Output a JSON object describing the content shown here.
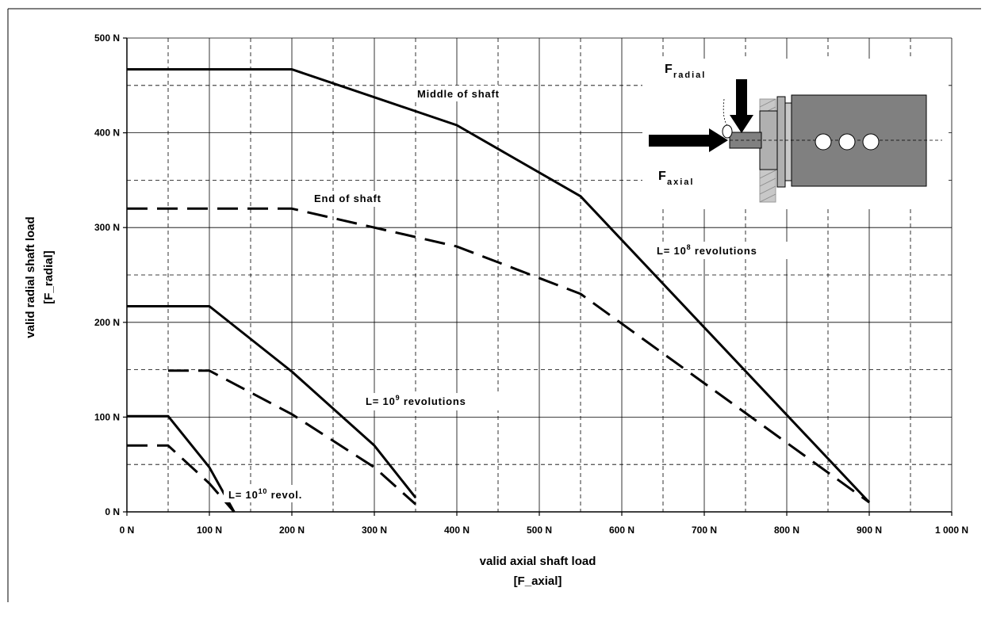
{
  "chart_data": {
    "type": "line",
    "xlabel_line1": "valid axial shaft load",
    "xlabel_line2": "[F_axial]",
    "ylabel_line1": "valid radial shaft load",
    "ylabel_line2": "[F_radial]",
    "xlim": [
      0,
      1000
    ],
    "ylim": [
      0,
      500
    ],
    "x_ticks": [
      "0 N",
      "100 N",
      "200 N",
      "300 N",
      "400 N",
      "500 N",
      "600 N",
      "700 N",
      "800 N",
      "900 N",
      "1 000 N"
    ],
    "y_ticks": [
      "0 N",
      "100 N",
      "200 N",
      "300 N",
      "400 N",
      "500 N"
    ],
    "grid": true,
    "series": [
      {
        "group": "L=10^8",
        "style": "solid",
        "points": [
          [
            0,
            467
          ],
          [
            200,
            467
          ],
          [
            400,
            408
          ],
          [
            550,
            333
          ],
          [
            900,
            10
          ]
        ]
      },
      {
        "group": "L=10^8",
        "style": "dashed",
        "points": [
          [
            0,
            320
          ],
          [
            200,
            320
          ],
          [
            400,
            280
          ],
          [
            550,
            230
          ],
          [
            900,
            10
          ]
        ]
      },
      {
        "group": "L=10^9",
        "style": "solid",
        "points": [
          [
            0,
            217
          ],
          [
            100,
            217
          ],
          [
            200,
            148
          ],
          [
            300,
            70
          ],
          [
            350,
            15
          ]
        ]
      },
      {
        "group": "L=10^9",
        "style": "dashed",
        "points": [
          [
            50,
            149
          ],
          [
            100,
            149
          ],
          [
            200,
            103
          ],
          [
            300,
            47
          ],
          [
            350,
            8
          ]
        ]
      },
      {
        "group": "L=10^10",
        "style": "solid",
        "points": [
          [
            0,
            101
          ],
          [
            50,
            101
          ],
          [
            100,
            47
          ],
          [
            130,
            0
          ]
        ]
      },
      {
        "group": "L=10^10",
        "style": "dashed",
        "points": [
          [
            0,
            70
          ],
          [
            50,
            70
          ],
          [
            100,
            30
          ],
          [
            130,
            0
          ]
        ]
      }
    ],
    "annotations": {
      "middle_of_shaft": "Middle of shaft",
      "end_of_shaft": "End of shaft",
      "l8_prefix": "L= 10",
      "l8_exp": "8",
      "l8_suffix": " revolutions",
      "l9_prefix": "L= 10",
      "l9_exp": "9",
      "l9_suffix": " revolutions",
      "l10_prefix": "L= 10",
      "l10_exp": "10",
      "l10_suffix": " revol."
    },
    "inset": {
      "radial_main": "F",
      "radial_sub": "radial",
      "axial_main": "F",
      "axial_sub": "axial"
    },
    "colors": {
      "line": "#000000",
      "grid": "#000000",
      "motor_body": "#808080",
      "motor_flange": "#b0b0b0",
      "holes": "#ffffff",
      "wall_hatch": "#9a9a9a"
    }
  }
}
